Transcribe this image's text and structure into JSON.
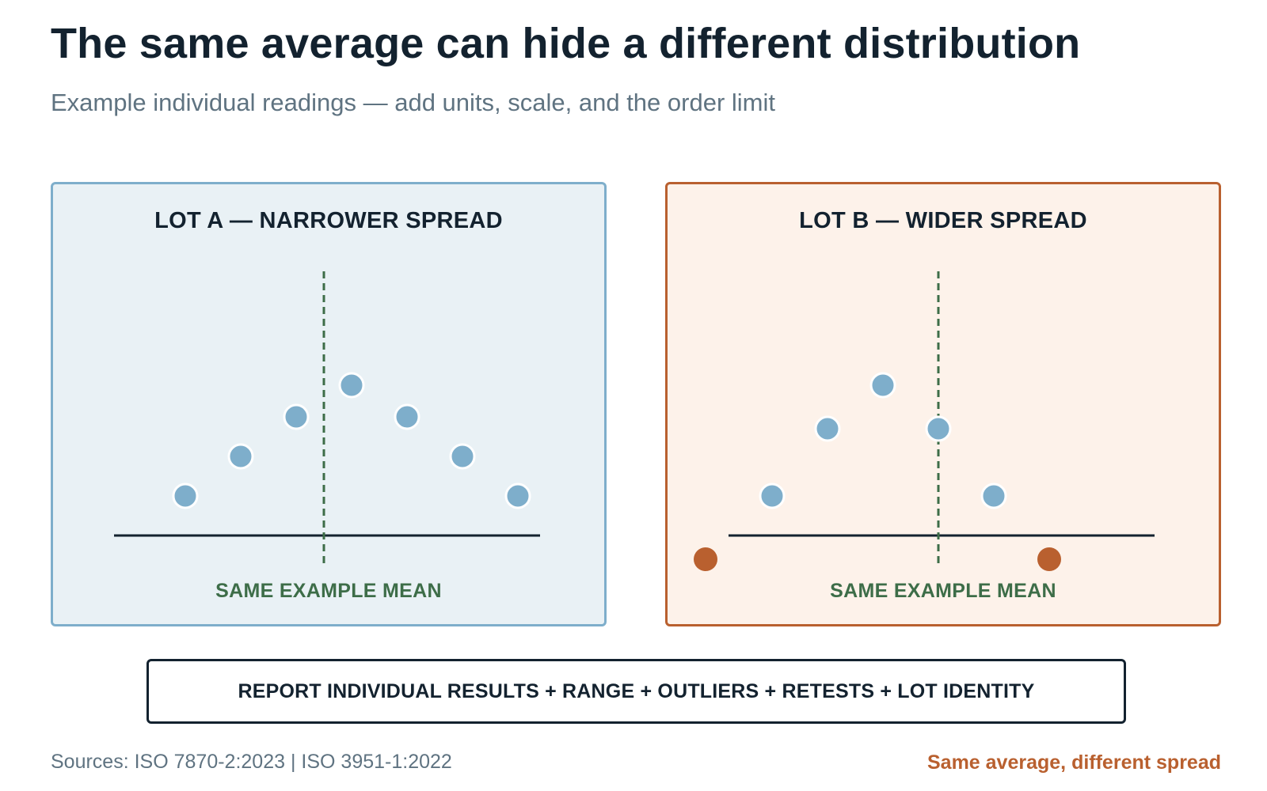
{
  "header": {
    "title": "The same average can hide a different distribution",
    "subtitle": "Example individual readings — add units, scale, and the order limit"
  },
  "panels": [
    {
      "id": "lot-a",
      "title": "LOT A — NARROWER SPREAD",
      "mean_label": "SAME EXAMPLE MEAN",
      "points": [
        {
          "value": -2.5,
          "height": 1.0,
          "kind": "reading"
        },
        {
          "value": -1.5,
          "height": 2.0,
          "kind": "reading"
        },
        {
          "value": -0.5,
          "height": 3.0,
          "kind": "reading"
        },
        {
          "value": 0.5,
          "height": 3.8,
          "kind": "reading"
        },
        {
          "value": 1.5,
          "height": 3.0,
          "kind": "reading"
        },
        {
          "value": 2.5,
          "height": 2.0,
          "kind": "reading"
        },
        {
          "value": 3.5,
          "height": 1.0,
          "kind": "reading"
        }
      ]
    },
    {
      "id": "lot-b",
      "title": "LOT B — WIDER SPREAD",
      "mean_label": "SAME EXAMPLE MEAN",
      "points": [
        {
          "value": -4.2,
          "height": -0.6,
          "kind": "outlier"
        },
        {
          "value": -3.0,
          "height": 1.0,
          "kind": "reading"
        },
        {
          "value": -2.0,
          "height": 2.7,
          "kind": "reading"
        },
        {
          "value": -1.0,
          "height": 3.8,
          "kind": "reading"
        },
        {
          "value": 0.0,
          "height": 2.7,
          "kind": "reading"
        },
        {
          "value": 1.0,
          "height": 1.0,
          "kind": "reading"
        },
        {
          "value": 2.0,
          "height": -0.6,
          "kind": "outlier"
        }
      ]
    }
  ],
  "guidance": "REPORT INDIVIDUAL RESULTS + RANGE + OUTLIERS + RETESTS + LOT IDENTITY",
  "footer": {
    "sources": "Sources: ISO 7870-2:2023 | ISO 3951-1:2022",
    "takeaway": "Same average, different spread"
  },
  "colors": {
    "reading": "#7eaecb",
    "outlier": "#b9602f",
    "mean_line": "#3d6d48",
    "axis": "#13222f"
  }
}
